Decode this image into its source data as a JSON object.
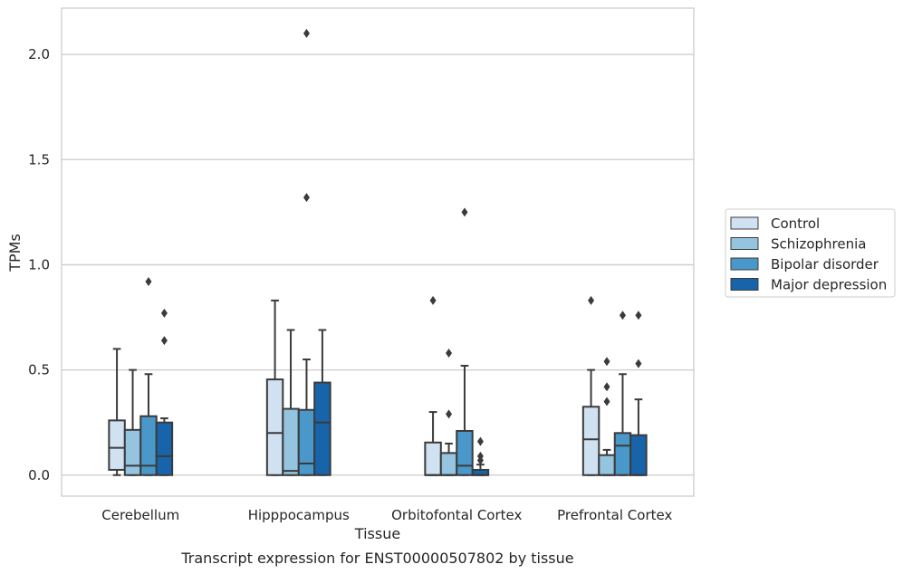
{
  "chart_data": {
    "type": "box",
    "title": "",
    "caption": "Transcript expression for ENST00000507802 by tissue",
    "xlabel": "Tissue",
    "ylabel": "TPMs",
    "ylim": [
      -0.1,
      2.22
    ],
    "yticks": [
      0.0,
      0.5,
      1.0,
      1.5,
      2.0
    ],
    "ytick_labels": [
      "0.0",
      "0.5",
      "1.0",
      "1.5",
      "2.0"
    ],
    "grid": "horizontal",
    "legend_position": "right",
    "categories": [
      "Cerebellum",
      "Hipppocampus",
      "Orbitofontal Cortex",
      "Prefrontal Cortex"
    ],
    "series": [
      {
        "name": "Control",
        "color": "#d0e1f2",
        "boxes": [
          {
            "q1": 0.025,
            "median": 0.13,
            "q3": 0.26,
            "whisker_low": 0.0,
            "whisker_high": 0.6,
            "outliers": []
          },
          {
            "q1": 0.0,
            "median": 0.2,
            "q3": 0.455,
            "whisker_low": 0.0,
            "whisker_high": 0.83,
            "outliers": []
          },
          {
            "q1": 0.0,
            "median": 0.0,
            "q3": 0.155,
            "whisker_low": 0.0,
            "whisker_high": 0.3,
            "outliers": [
              0.83
            ]
          },
          {
            "q1": 0.0,
            "median": 0.17,
            "q3": 0.325,
            "whisker_low": 0.0,
            "whisker_high": 0.5,
            "outliers": [
              0.83
            ]
          }
        ]
      },
      {
        "name": "Schizophrenia",
        "color": "#94c4df",
        "boxes": [
          {
            "q1": 0.0,
            "median": 0.045,
            "q3": 0.215,
            "whisker_low": 0.0,
            "whisker_high": 0.5,
            "outliers": []
          },
          {
            "q1": 0.0,
            "median": 0.02,
            "q3": 0.315,
            "whisker_low": 0.0,
            "whisker_high": 0.69,
            "outliers": []
          },
          {
            "q1": 0.0,
            "median": 0.0,
            "q3": 0.105,
            "whisker_low": 0.0,
            "whisker_high": 0.15,
            "outliers": [
              0.29,
              0.58
            ]
          },
          {
            "q1": 0.0,
            "median": 0.0,
            "q3": 0.095,
            "whisker_low": 0.0,
            "whisker_high": 0.12,
            "outliers": [
              0.35,
              0.42,
              0.54
            ]
          }
        ]
      },
      {
        "name": "Bipolar disorder",
        "color": "#4a98c9",
        "boxes": [
          {
            "q1": 0.0,
            "median": 0.045,
            "q3": 0.28,
            "whisker_low": 0.0,
            "whisker_high": 0.48,
            "outliers": [
              0.92
            ]
          },
          {
            "q1": 0.0,
            "median": 0.055,
            "q3": 0.31,
            "whisker_low": 0.0,
            "whisker_high": 0.55,
            "outliers": [
              1.32,
              2.1
            ]
          },
          {
            "q1": 0.0,
            "median": 0.045,
            "q3": 0.21,
            "whisker_low": 0.0,
            "whisker_high": 0.52,
            "outliers": [
              1.25
            ]
          },
          {
            "q1": 0.0,
            "median": 0.14,
            "q3": 0.2,
            "whisker_low": 0.0,
            "whisker_high": 0.48,
            "outliers": [
              0.76
            ]
          }
        ]
      },
      {
        "name": "Major depression",
        "color": "#1764ab",
        "boxes": [
          {
            "q1": 0.0,
            "median": 0.09,
            "q3": 0.25,
            "whisker_low": 0.0,
            "whisker_high": 0.27,
            "outliers": [
              0.64,
              0.77
            ]
          },
          {
            "q1": 0.0,
            "median": 0.25,
            "q3": 0.44,
            "whisker_low": 0.0,
            "whisker_high": 0.69,
            "outliers": []
          },
          {
            "q1": 0.0,
            "median": 0.0,
            "q3": 0.025,
            "whisker_low": 0.0,
            "whisker_high": 0.05,
            "outliers": [
              0.07,
              0.09,
              0.16
            ]
          },
          {
            "q1": 0.0,
            "median": 0.0,
            "q3": 0.19,
            "whisker_low": 0.0,
            "whisker_high": 0.36,
            "outliers": [
              0.53,
              0.76
            ]
          }
        ]
      }
    ]
  }
}
